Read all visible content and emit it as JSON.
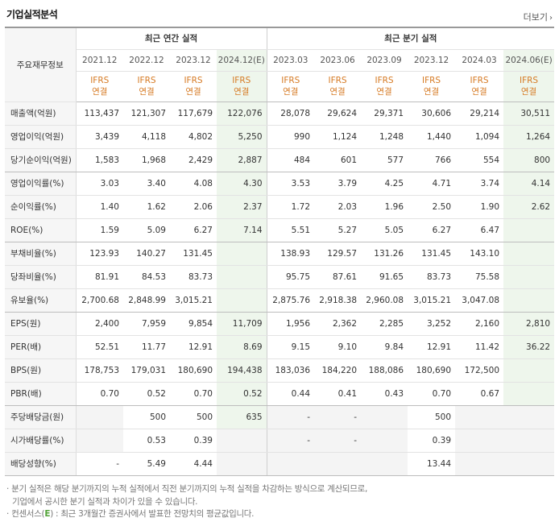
{
  "header": {
    "title": "기업실적분석",
    "more_label": "더보기",
    "more_chev": "›"
  },
  "table": {
    "corner_label": "주요재무정보",
    "annual_group_label": "최근 연간 실적",
    "quarter_group_label": "최근 분기 실적",
    "periods": [
      "2021.12",
      "2022.12",
      "2023.12",
      "2024.12(E)",
      "2023.03",
      "2023.06",
      "2023.09",
      "2023.12",
      "2024.03",
      "2024.06(E)"
    ],
    "standard_line1": "IFRS",
    "standard_line2": "연결",
    "rows": [
      {
        "label": "매출액(억원)",
        "values": [
          "113,437",
          "121,307",
          "117,679",
          "122,076",
          "28,078",
          "29,624",
          "29,371",
          "30,606",
          "29,214",
          "30,511"
        ]
      },
      {
        "label": "영업이익(억원)",
        "values": [
          "3,439",
          "4,118",
          "4,802",
          "5,250",
          "990",
          "1,124",
          "1,248",
          "1,440",
          "1,094",
          "1,264"
        ]
      },
      {
        "label": "당기순이익(억원)",
        "values": [
          "1,583",
          "1,968",
          "2,429",
          "2,887",
          "484",
          "601",
          "577",
          "766",
          "554",
          "800"
        ]
      },
      {
        "label": "영업이익률(%)",
        "values": [
          "3.03",
          "3.40",
          "4.08",
          "4.30",
          "3.53",
          "3.79",
          "4.25",
          "4.71",
          "3.74",
          "4.14"
        ]
      },
      {
        "label": "순이익률(%)",
        "values": [
          "1.40",
          "1.62",
          "2.06",
          "2.37",
          "1.72",
          "2.03",
          "1.96",
          "2.50",
          "1.90",
          "2.62"
        ]
      },
      {
        "label": "ROE(%)",
        "values": [
          "1.59",
          "5.09",
          "6.27",
          "7.14",
          "5.51",
          "5.27",
          "5.05",
          "6.27",
          "6.47",
          ""
        ]
      },
      {
        "label": "부채비율(%)",
        "values": [
          "123.93",
          "140.27",
          "131.45",
          "",
          "138.93",
          "129.57",
          "131.26",
          "131.45",
          "143.10",
          ""
        ]
      },
      {
        "label": "당좌비율(%)",
        "values": [
          "81.91",
          "84.53",
          "83.73",
          "",
          "95.75",
          "87.61",
          "91.65",
          "83.73",
          "75.58",
          ""
        ]
      },
      {
        "label": "유보율(%)",
        "values": [
          "2,700.68",
          "2,848.99",
          "3,015.21",
          "",
          "2,875.76",
          "2,918.38",
          "2,960.08",
          "3,015.21",
          "3,047.08",
          ""
        ]
      },
      {
        "label": "EPS(원)",
        "values": [
          "2,400",
          "7,959",
          "9,854",
          "11,709",
          "1,956",
          "2,362",
          "2,285",
          "3,252",
          "2,160",
          "2,810"
        ]
      },
      {
        "label": "PER(배)",
        "values": [
          "52.51",
          "11.77",
          "12.91",
          "8.69",
          "9.15",
          "9.10",
          "9.84",
          "12.91",
          "11.42",
          "36.22"
        ]
      },
      {
        "label": "BPS(원)",
        "values": [
          "178,753",
          "179,031",
          "180,690",
          "194,438",
          "183,036",
          "184,220",
          "188,086",
          "180,690",
          "172,500",
          ""
        ]
      },
      {
        "label": "PBR(배)",
        "values": [
          "0.70",
          "0.52",
          "0.70",
          "0.52",
          "0.44",
          "0.41",
          "0.43",
          "0.70",
          "0.67",
          ""
        ]
      },
      {
        "label": "주당배당금(원)",
        "values": [
          "",
          "500",
          "500",
          "635",
          "-",
          "-",
          "",
          "500",
          "",
          ""
        ]
      },
      {
        "label": "시가배당률(%)",
        "values": [
          "",
          "0.53",
          "0.39",
          "",
          "-",
          "-",
          "",
          "0.39",
          "",
          ""
        ]
      },
      {
        "label": "배당성향(%)",
        "values": [
          "-",
          "5.49",
          "4.44",
          "",
          "",
          "",
          "",
          "13.44",
          "",
          ""
        ]
      }
    ]
  },
  "notes": {
    "line1": "분기 실적은 해당 분기까지의 누적 실적에서 직전 분기까지의 누적 실적을 차감하는 방식으로 계산되므로,",
    "line2": "기업에서 공시한 분기 실적과 차이가 있을 수 있습니다.",
    "line3_prefix": "컨센서스(",
    "line3_e": "E",
    "line3_suffix": ") : 최근 3개월간 증권사에서 발표한 전망치의 평균값입니다."
  },
  "colors": {
    "ifrs_text": "#d67a23",
    "estimate_bg": "#eef6ec",
    "consensus_e": "#53a339"
  }
}
